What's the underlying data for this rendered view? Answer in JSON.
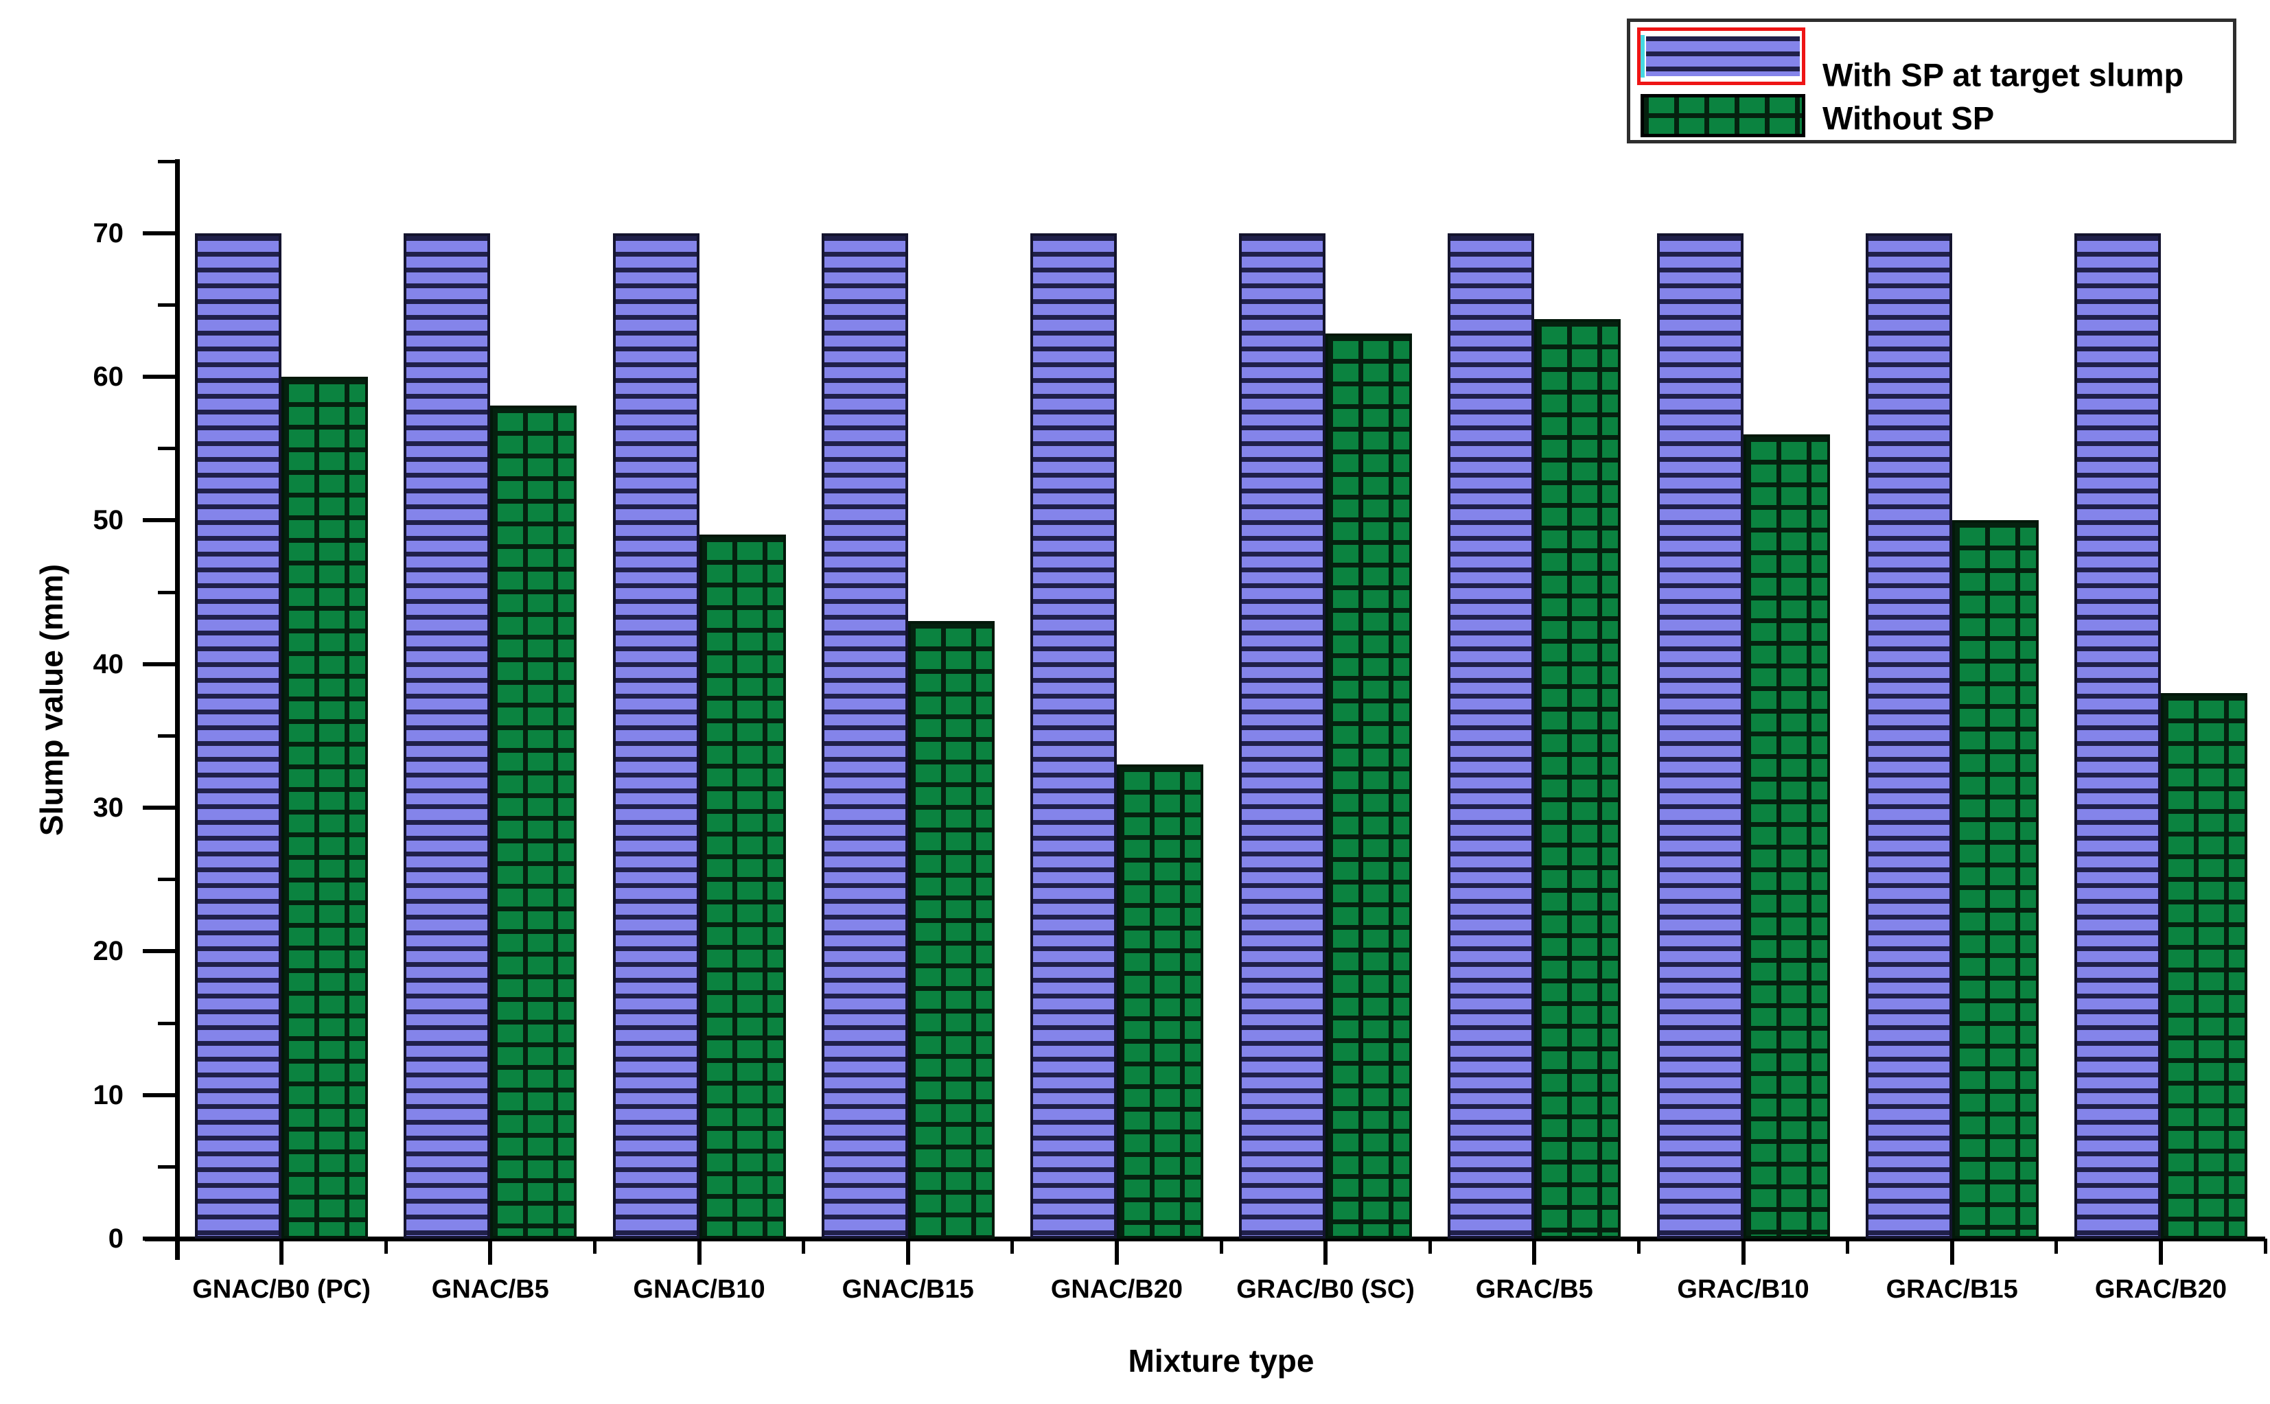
{
  "chart_data": {
    "type": "bar",
    "title": "",
    "xlabel": "Mixture type",
    "ylabel": "Slump value (mm)",
    "categories": [
      "GNAC/B0 (PC)",
      "GNAC/B5",
      "GNAC/B10",
      "GNAC/B15",
      "GNAC/B20",
      "GRAC/B0 (SC)",
      "GRAC/B5",
      "GRAC/B10",
      "GRAC/B15",
      "GRAC/B20"
    ],
    "series": [
      {
        "name": "With SP at target slump",
        "values": [
          70,
          70,
          70,
          70,
          70,
          70,
          70,
          70,
          70,
          70
        ],
        "fill_color": "#8484ea",
        "pattern": "horizontal-stripes",
        "pattern_color": "#20204a"
      },
      {
        "name": "Without SP",
        "values": [
          60,
          58,
          49,
          43,
          33,
          63,
          64,
          56,
          50,
          38
        ],
        "fill_color": "#0b8340",
        "pattern": "grid",
        "pattern_color": "#05210f"
      }
    ],
    "ylim": [
      0,
      75
    ],
    "yticks_major": [
      0,
      10,
      20,
      30,
      40,
      50,
      60,
      70
    ],
    "yticks_minor": [
      5,
      15,
      25,
      35,
      45,
      55,
      65,
      75
    ],
    "grid": false,
    "legend_position": "top-right",
    "legend_selected_border_color": "#ee1515",
    "legend_selected_edge_color": "#45d9e2",
    "axis_color": "#000000",
    "background_color": "#ffffff"
  }
}
